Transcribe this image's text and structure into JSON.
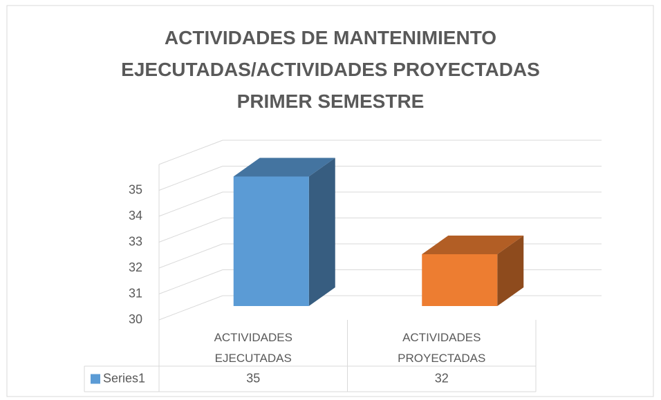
{
  "chart_data": {
    "type": "bar3d",
    "title": "ACTIVIDADES DE MANTENIMIENTO EJECUTADAS/ACTIVIDADES PROYECTADAS PRIMER SEMESTRE",
    "categories": [
      "ACTIVIDADES EJECUTADAS",
      "ACTIVIDADES PROYECTADAS"
    ],
    "series": [
      {
        "name": "Series1",
        "color": "#5b9bd5",
        "values": [
          35,
          32
        ]
      }
    ],
    "point_colors": [
      "#5b9bd5",
      "#ed7d31"
    ],
    "ylim": [
      30,
      36
    ],
    "yticks": [
      30,
      31,
      32,
      33,
      34,
      35
    ],
    "grid": true,
    "data_table": true
  }
}
